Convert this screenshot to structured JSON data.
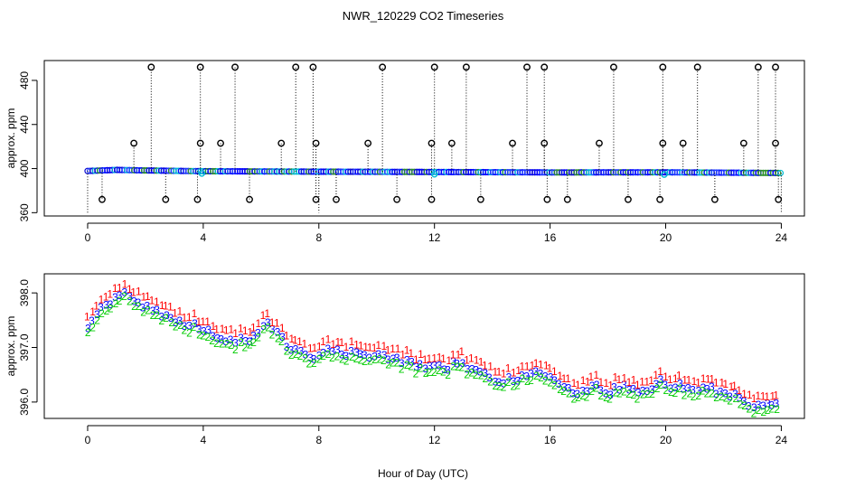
{
  "chart_data": [
    {
      "type": "scatter",
      "title": "NWR_120229  CO2 Timeseries",
      "xlabel": "",
      "ylabel": "approx. ppm",
      "xlim": [
        -1.5,
        24.8
      ],
      "ylim": [
        357,
        498
      ],
      "xticks": [
        0,
        4,
        8,
        12,
        16,
        20,
        24
      ],
      "xtick_labels": [
        "0",
        "4",
        "8",
        "12",
        "16",
        "20",
        "24"
      ],
      "yticks": [
        360,
        400,
        440,
        480
      ],
      "ytick_labels": [
        "360",
        "400",
        "440",
        "480"
      ],
      "baseline": [
        [
          0.0,
          397.8
        ],
        [
          1.0,
          398.8
        ],
        [
          2.0,
          398.3
        ],
        [
          4.0,
          397.6
        ],
        [
          8.0,
          397.2
        ],
        [
          12.0,
          396.9
        ],
        [
          16.0,
          396.5
        ],
        [
          20.0,
          396.6
        ],
        [
          24.0,
          396.0
        ]
      ],
      "series": [
        {
          "name": "stem 492 ppm",
          "color": "#000000",
          "value": 492,
          "x": [
            2.2,
            3.9,
            5.1,
            7.2,
            7.8,
            10.2,
            12.0,
            13.1,
            15.2,
            15.8,
            18.2,
            19.9,
            21.1,
            23.2,
            23.8
          ]
        },
        {
          "name": "stem 423 ppm",
          "color": "#000000",
          "value": 423,
          "x": [
            1.6,
            3.9,
            4.6,
            6.7,
            7.9,
            9.7,
            11.9,
            12.6,
            14.7,
            15.8,
            17.7,
            19.9,
            20.6,
            22.7,
            23.8
          ]
        },
        {
          "name": "stem 372 ppm",
          "color": "#000000",
          "value": 372,
          "x": [
            0.5,
            2.7,
            3.8,
            5.6,
            7.9,
            8.6,
            10.7,
            11.9,
            13.6,
            15.9,
            16.6,
            18.7,
            19.8,
            21.7,
            23.9
          ]
        }
      ]
    },
    {
      "type": "scatter",
      "title": "",
      "xlabel": "Hour of Day (UTC)",
      "ylabel": "approx. ppm",
      "xlim": [
        -1.5,
        24.8
      ],
      "ylim": [
        395.7,
        398.35
      ],
      "xticks": [
        0,
        4,
        8,
        12,
        16,
        20,
        24
      ],
      "xtick_labels": [
        "0",
        "4",
        "8",
        "12",
        "16",
        "20",
        "24"
      ],
      "yticks": [
        396.0,
        397.0,
        398.0
      ],
      "ytick_labels": [
        "396.0",
        "397.0",
        "398.0"
      ],
      "marker_offsets": {
        "1": 0.17,
        "2": -0.09,
        "3": 0.0
      },
      "series": [
        {
          "name": "1",
          "color": "#ff0000"
        },
        {
          "name": "2",
          "color": "#00cc00"
        },
        {
          "name": "3",
          "color": "#0000ff"
        }
      ],
      "trend": {
        "x": [
          0.0,
          0.3,
          0.7,
          1.0,
          1.3,
          1.6,
          2.0,
          2.5,
          3.0,
          3.5,
          4.0,
          4.5,
          5.0,
          5.5,
          6.0,
          6.3,
          6.6,
          7.0,
          7.4,
          7.8,
          8.0,
          8.5,
          9.0,
          9.5,
          10.0,
          10.5,
          11.0,
          11.5,
          12.0,
          12.5,
          13.0,
          13.5,
          14.0,
          14.5,
          15.0,
          15.4,
          15.7,
          16.0,
          16.5,
          17.0,
          17.5,
          18.0,
          18.5,
          19.0,
          19.5,
          19.8,
          20.0,
          20.5,
          21.0,
          21.5,
          22.0,
          22.5,
          23.0,
          23.5,
          23.9
        ],
        "y": [
          397.4,
          397.6,
          397.8,
          397.95,
          398.0,
          397.85,
          397.75,
          397.6,
          397.5,
          397.4,
          397.35,
          397.2,
          397.1,
          397.15,
          397.3,
          397.45,
          397.2,
          397.0,
          396.9,
          396.75,
          396.85,
          396.95,
          396.9,
          396.85,
          396.9,
          396.8,
          396.75,
          396.65,
          396.7,
          396.65,
          396.7,
          396.6,
          396.45,
          396.4,
          396.45,
          396.5,
          396.55,
          396.45,
          396.3,
          396.15,
          396.3,
          396.2,
          396.25,
          396.15,
          396.2,
          396.35,
          396.3,
          396.3,
          396.2,
          396.25,
          396.15,
          396.1,
          395.95,
          395.9,
          395.95
        ]
      }
    }
  ]
}
